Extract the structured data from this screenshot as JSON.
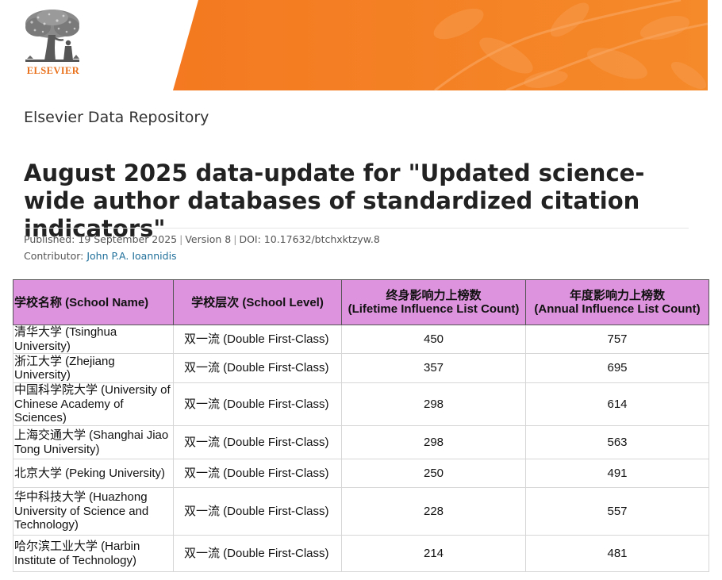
{
  "brand": {
    "logo_text": "ELSEVIER",
    "logo_icon": "elsevier-tree-logo-icon",
    "accent_color": "#f47c20",
    "logo_color": "#e9711c"
  },
  "repository": {
    "name": "Elsevier Data Repository"
  },
  "dataset": {
    "title": "August 2025 data-update for \"Updated science-wide author databases of standardized citation indicators\"",
    "published": "Published: 19 September 2025",
    "version": "Version 8",
    "doi": "DOI: 10.17632/btchxktzyw.8",
    "contributor_label": "Contributor:",
    "contributor_name": "John P.A. Ioannidis"
  },
  "table": {
    "header_color": "#dd93dd",
    "columns": [
      {
        "line1": "学校名称 (School Name)",
        "line2": ""
      },
      {
        "line1": "学校层次 (School Level)",
        "line2": ""
      },
      {
        "line1": "终身影响力上榜数",
        "line2": "(Lifetime Influence List Count)"
      },
      {
        "line1": "年度影响力上榜数",
        "line2": "(Annual Influence List Count)"
      }
    ],
    "rows": [
      {
        "name": "清华大学 (Tsinghua University)",
        "level": "双一流 (Double First-Class)",
        "lifetime": "450",
        "annual": "757"
      },
      {
        "name": "浙江大学 (Zhejiang University)",
        "level": "双一流 (Double First-Class)",
        "lifetime": "357",
        "annual": "695"
      },
      {
        "name": "中国科学院大学 (University of Chinese Academy of Sciences)",
        "level": "双一流 (Double First-Class)",
        "lifetime": "298",
        "annual": "614"
      },
      {
        "name": "上海交通大学 (Shanghai Jiao Tong University)",
        "level": "双一流 (Double First-Class)",
        "lifetime": "298",
        "annual": "563"
      },
      {
        "name": "北京大学 (Peking University)",
        "level": "双一流 (Double First-Class)",
        "lifetime": "250",
        "annual": "491"
      },
      {
        "name": "华中科技大学 (Huazhong University of Science and Technology)",
        "level": "双一流 (Double First-Class)",
        "lifetime": "228",
        "annual": "557"
      },
      {
        "name": "哈尔滨工业大学 (Harbin Institute of Technology)",
        "level": "双一流 (Double First-Class)",
        "lifetime": "214",
        "annual": "481"
      }
    ]
  }
}
